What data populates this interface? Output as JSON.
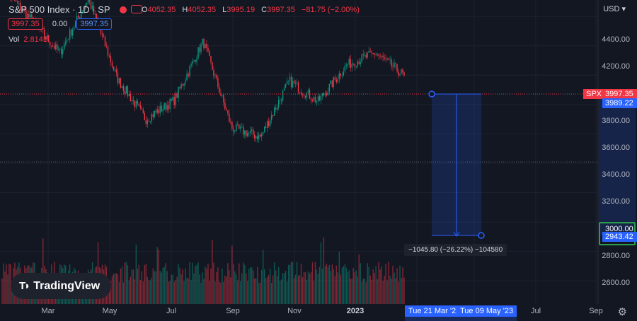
{
  "header": {
    "title": "S&P 500 Index · 1D · SP",
    "ohlc": {
      "o_label": "O",
      "o": "4052.35",
      "h_label": "H",
      "h": "4052.35",
      "l_label": "L",
      "l": "3995.19",
      "c_label": "C",
      "c": "3997.35",
      "change": "−81.75 (−2.00%)"
    },
    "sell_price": "3997.35",
    "spread": "0.00",
    "buy_price": "3997.35",
    "volume_label": "Vol",
    "volume_value": "2.814B"
  },
  "price_scale": {
    "currency": "USD",
    "ticks": [
      "4400.00",
      "4200.00",
      "4000.00",
      "3800.00",
      "3600.00",
      "3400.00",
      "3200.00",
      "3000.00",
      "2800.00",
      "2600.00"
    ],
    "symbol_tag": "SPX",
    "last_price": "3997.35",
    "measure_start_price": "3989.22",
    "measure_end_green": "3000.00",
    "measure_end_price": "2943.42"
  },
  "time_scale": {
    "labels": [
      "Mar",
      "May",
      "Jul",
      "Sep",
      "Nov",
      "2023",
      "Jul",
      "Sep"
    ],
    "start_flag": "Tue 21 Mar '23",
    "end_flag": "Tue 09 May '23"
  },
  "measure": {
    "label": "−1045.80 (−26.22%) −104580"
  },
  "logo": {
    "text": "TradingView"
  },
  "colors": {
    "up": "#089981",
    "down": "#f23645",
    "accent": "#2962ff",
    "background": "#131722"
  },
  "chart_data": {
    "type": "candlestick",
    "symbol": "S&P 500 Index",
    "interval": "1D",
    "x_range": [
      "2022-01",
      "2023-03"
    ],
    "ylim": [
      2500,
      4550
    ],
    "price_path": [
      [
        "2022-01",
        4600
      ],
      [
        "2022-02",
        4380
      ],
      [
        "2022-03",
        4150
      ],
      [
        "2022-04",
        4520
      ],
      [
        "2022-05",
        3980
      ],
      [
        "2022-06",
        3700
      ],
      [
        "2022-07",
        3830
      ],
      [
        "2022-08",
        4230
      ],
      [
        "2022-09",
        3640
      ],
      [
        "2022-10",
        3580
      ],
      [
        "2022-11",
        3960
      ],
      [
        "2022-12",
        3820
      ],
      [
        "2023-01",
        4070
      ],
      [
        "2023-02",
        4150
      ],
      [
        "2023-03",
        3997
      ]
    ],
    "last_close": 3997.35,
    "measure": {
      "from_price": 3989.22,
      "to_price": 2943.42,
      "from_date": "Tue 21 Mar '23",
      "to_date": "Tue 09 May '23"
    }
  }
}
